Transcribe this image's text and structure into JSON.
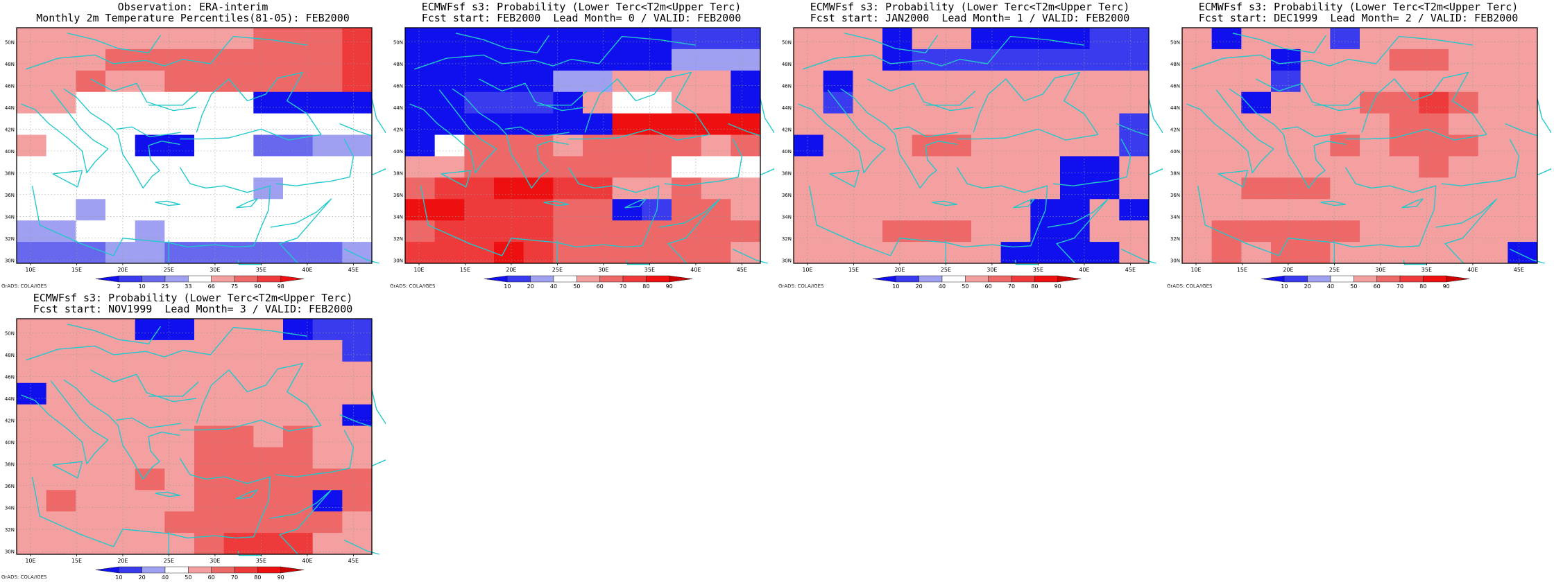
{
  "map": {
    "x_ticks": [
      "10E",
      "15E",
      "20E",
      "25E",
      "30E",
      "35E",
      "40E",
      "45E"
    ],
    "y_ticks": [
      "30N",
      "32N",
      "34N",
      "36N",
      "38N",
      "40N",
      "42N",
      "44N",
      "46N",
      "48N",
      "50N"
    ],
    "lon_range": [
      8.5,
      47.0
    ],
    "lat_range": [
      29.7,
      51.3
    ]
  },
  "credit": "GrADS: COLA/IGES",
  "panels": [
    {
      "id": "obs",
      "title_line1": "Observation: ERA-interim",
      "title_line2": "Monthly 2m Temperature Percentiles(81-05): FEB2000",
      "colorbar": {
        "labels": [
          "2",
          "10",
          "25",
          "33",
          "66",
          "75",
          "90",
          "98"
        ],
        "colors": [
          "#1010ee",
          "#3a3aee",
          "#6868ee",
          "#a0a0f2",
          "#ffffff",
          "#f4a0a0",
          "#ee6868",
          "#ee3a3a",
          "#ee1010"
        ]
      },
      "grid": [
        "555555556667",
        "555666666667",
        "556556666667",
        "554444440000",
        "444444444444",
        "544400442233",
        "444444444444",
        "444444443444",
        "443444444444",
        "334434444444",
        "222332222223"
      ]
    },
    {
      "id": "lead0",
      "title_line1": "ECMWFsf s3: Probability (Lower Terc<T2m<Upper Terc)",
      "title_line2": "Fcst start: FEB2000  Lead Month= 0 / VALID: FEB2000",
      "colorbar": {
        "labels": [
          "10",
          "20",
          "40",
          "50",
          "60",
          "70",
          "80",
          "90"
        ],
        "colors": [
          "#1010ee",
          "#3a3aee",
          "#a0a0f2",
          "#ffffff",
          "#f4a0a0",
          "#ee6868",
          "#ee3a3a",
          "#ee1010",
          "#cc0000"
        ]
      },
      "grid": [
        "000000000111",
        "000000000222",
        "000002244440",
        "001110433440",
        "000000077777",
        "035554555545",
        "445555555333",
        "566776644544",
        "776665501554",
        "566665555555",
        "666765555554"
      ]
    },
    {
      "id": "lead1",
      "title_line1": "ECMWFsf s3: Probability (Lower Terc<T2m<Upper Terc)",
      "title_line2": "Fcst start: JAN2000  Lead Month= 1 / VALID: FEB2000",
      "colorbar": {
        "labels": [
          "10",
          "20",
          "40",
          "50",
          "60",
          "70",
          "80",
          "90"
        ],
        "colors": [
          "#1010ee",
          "#3a3aee",
          "#a0a0f2",
          "#ffffff",
          "#f4a0a0",
          "#ee6868",
          "#ee3a3a",
          "#ee1010",
          "#cc0000"
        ]
      },
      "grid": [
        "444044000011",
        "444011111111",
        "404444444444",
        "414444444444",
        "444444444441",
        "044455444441",
        "444444444004",
        "444444444004",
        "444444440040",
        "444555440044",
        "444444400004"
      ]
    },
    {
      "id": "lead2",
      "title_line1": "ECMWFsf s3: Probability (Lower Terc<T2m<Upper Terc)",
      "title_line2": "Fcst start: DEC1999  Lead Month= 2 / VALID: FEB2000",
      "colorbar": {
        "labels": [
          "10",
          "20",
          "40",
          "50",
          "60",
          "70",
          "80",
          "90"
        ],
        "colors": [
          "#1010ee",
          "#3a3aee",
          "#a0a0f2",
          "#ffffff",
          "#f4a0a0",
          "#ee6868",
          "#ee3a3a",
          "#ee1010",
          "#cc0000"
        ]
      },
      "grid": [
        "404441444444",
        "444044455444",
        "444144444444",
        "440444556544",
        "444444455444",
        "444445455544",
        "444444445444",
        "445554444444",
        "444444444444",
        "455555444444",
        "454554444440"
      ]
    },
    {
      "id": "lead3",
      "title_line1": "ECMWFsf s3: Probability (Lower Terc<T2m<Upper Terc)",
      "title_line2": "Fcst start: NOV1999  Lead Month= 3 / VALID: FEB2000",
      "colorbar": {
        "labels": [
          "10",
          "20",
          "40",
          "50",
          "60",
          "70",
          "80",
          "90"
        ],
        "colors": [
          "#1010ee",
          "#3a3aee",
          "#a0a0f2",
          "#ffffff",
          "#f4a0a0",
          "#ee6868",
          "#ee3a3a",
          "#ee1010",
          "#cc0000"
        ]
      },
      "grid": [
        "444400444011",
        "444444444441",
        "444444444444",
        "044444444444",
        "444444444440",
        "444444554544",
        "444444555544",
        "444454555555",
        "454444555505",
        "444445555554",
        "444444566644"
      ]
    }
  ]
}
